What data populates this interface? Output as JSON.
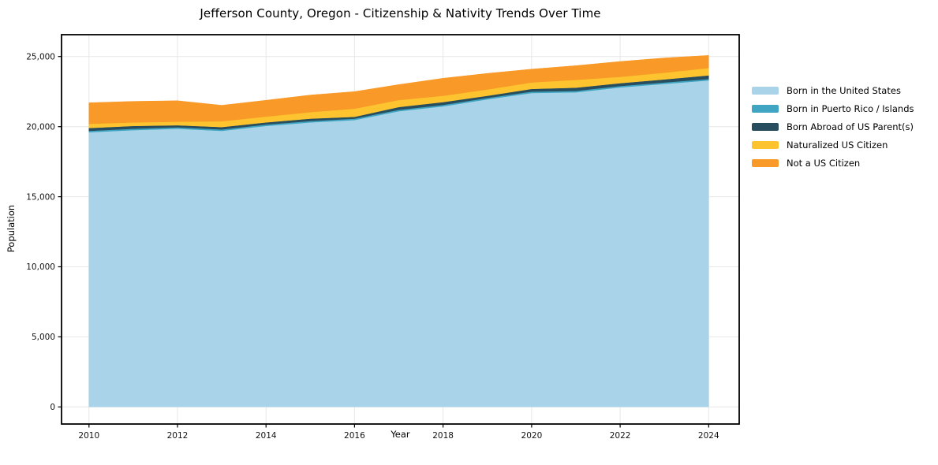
{
  "page": {
    "title": "Jefferson County, Oregon - Citizenship & Nativity Trends Over Time"
  },
  "chart_data": {
    "type": "area",
    "stacked": true,
    "title": "Jefferson County, Oregon - Citizenship & Nativity Trends Over Time",
    "xlabel": "Year",
    "ylabel": "Population",
    "x": [
      2010,
      2011,
      2012,
      2013,
      2014,
      2015,
      2016,
      2017,
      2018,
      2019,
      2020,
      2021,
      2022,
      2023,
      2024
    ],
    "xticks": [
      2010,
      2012,
      2014,
      2016,
      2018,
      2020,
      2022,
      2024
    ],
    "yticks": [
      0,
      5000,
      10000,
      15000,
      20000,
      25000
    ],
    "xlim": [
      2009.38,
      2024.69
    ],
    "ylim": [
      -1220,
      26560
    ],
    "grid": true,
    "legend_position": "right",
    "axis_color": "#000000",
    "grid_color": "#e7e7e7",
    "tick_label_color": "#111111",
    "series": [
      {
        "name": "Born in the United States",
        "color": "#a8d3e8",
        "values": [
          19600,
          19750,
          19850,
          19700,
          20050,
          20300,
          20470,
          21100,
          21450,
          21950,
          22400,
          22450,
          22800,
          23050,
          23300
        ]
      },
      {
        "name": "Born in Puerto Rico / Islands",
        "color": "#3fa5c2",
        "values": [
          100,
          100,
          100,
          100,
          100,
          100,
          100,
          100,
          100,
          100,
          100,
          100,
          100,
          100,
          100
        ]
      },
      {
        "name": "Born Abroad of US Parent(s)",
        "color": "#284d5e",
        "values": [
          200,
          200,
          150,
          170,
          150,
          170,
          130,
          200,
          200,
          150,
          190,
          230,
          200,
          220,
          260
        ]
      },
      {
        "name": "Naturalized US Citizen",
        "color": "#fdc430",
        "values": [
          300,
          250,
          250,
          410,
          420,
          460,
          580,
          500,
          450,
          450,
          460,
          560,
          450,
          480,
          520
        ]
      },
      {
        "name": "Not a US Citizen",
        "color": "#f89928",
        "values": [
          1500,
          1500,
          1500,
          1140,
          1160,
          1220,
          1220,
          1100,
          1250,
          1150,
          950,
          1010,
          1100,
          1050,
          900
        ]
      }
    ],
    "totals": [
      21700,
      21800,
      21850,
      21520,
      21880,
      22250,
      22500,
      23000,
      23450,
      23800,
      24100,
      24350,
      24650,
      24900,
      25080
    ]
  }
}
